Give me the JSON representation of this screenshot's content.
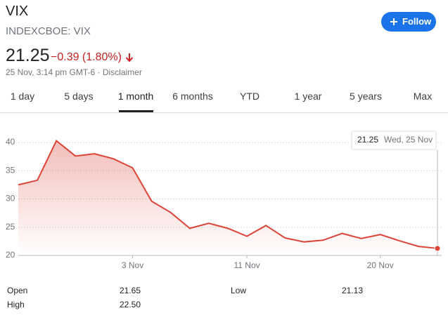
{
  "header": {
    "title": "VIX",
    "subtitle": "INDEXCBOE: VIX",
    "follow": "Follow"
  },
  "quote": {
    "price": "21.25",
    "change": "−0.39 (1.80%)",
    "timestamp": "25 Nov, 3:14 pm GMT-6",
    "disclaimer": "Disclaimer"
  },
  "tabs": [
    "1 day",
    "5 days",
    "1 month",
    "6 months",
    "YTD",
    "1 year",
    "5 years",
    "Max"
  ],
  "chart_data": {
    "type": "area-line",
    "categories": [
      null,
      null,
      null,
      null,
      null,
      null,
      "3 Nov",
      null,
      null,
      null,
      null,
      null,
      "11 Nov",
      null,
      null,
      null,
      null,
      null,
      null,
      "20 Nov",
      null,
      null,
      null
    ],
    "values": [
      32.5,
      33.3,
      40.3,
      37.6,
      38.0,
      37.1,
      35.5,
      29.6,
      27.6,
      24.8,
      25.7,
      24.8,
      23.4,
      25.3,
      23.1,
      22.4,
      22.7,
      23.9,
      23.0,
      23.7,
      22.6,
      21.6,
      21.25
    ],
    "color": "#db4437",
    "ylim": [
      20,
      40
    ],
    "yticks": [
      20,
      25,
      30,
      35,
      40
    ],
    "grid": true,
    "tooltip_date": "Wed, 25 Nov"
  },
  "stats": [
    [
      "Open",
      "21.65"
    ],
    [
      "High",
      "22.50"
    ],
    [
      "Low",
      "21.13"
    ]
  ]
}
